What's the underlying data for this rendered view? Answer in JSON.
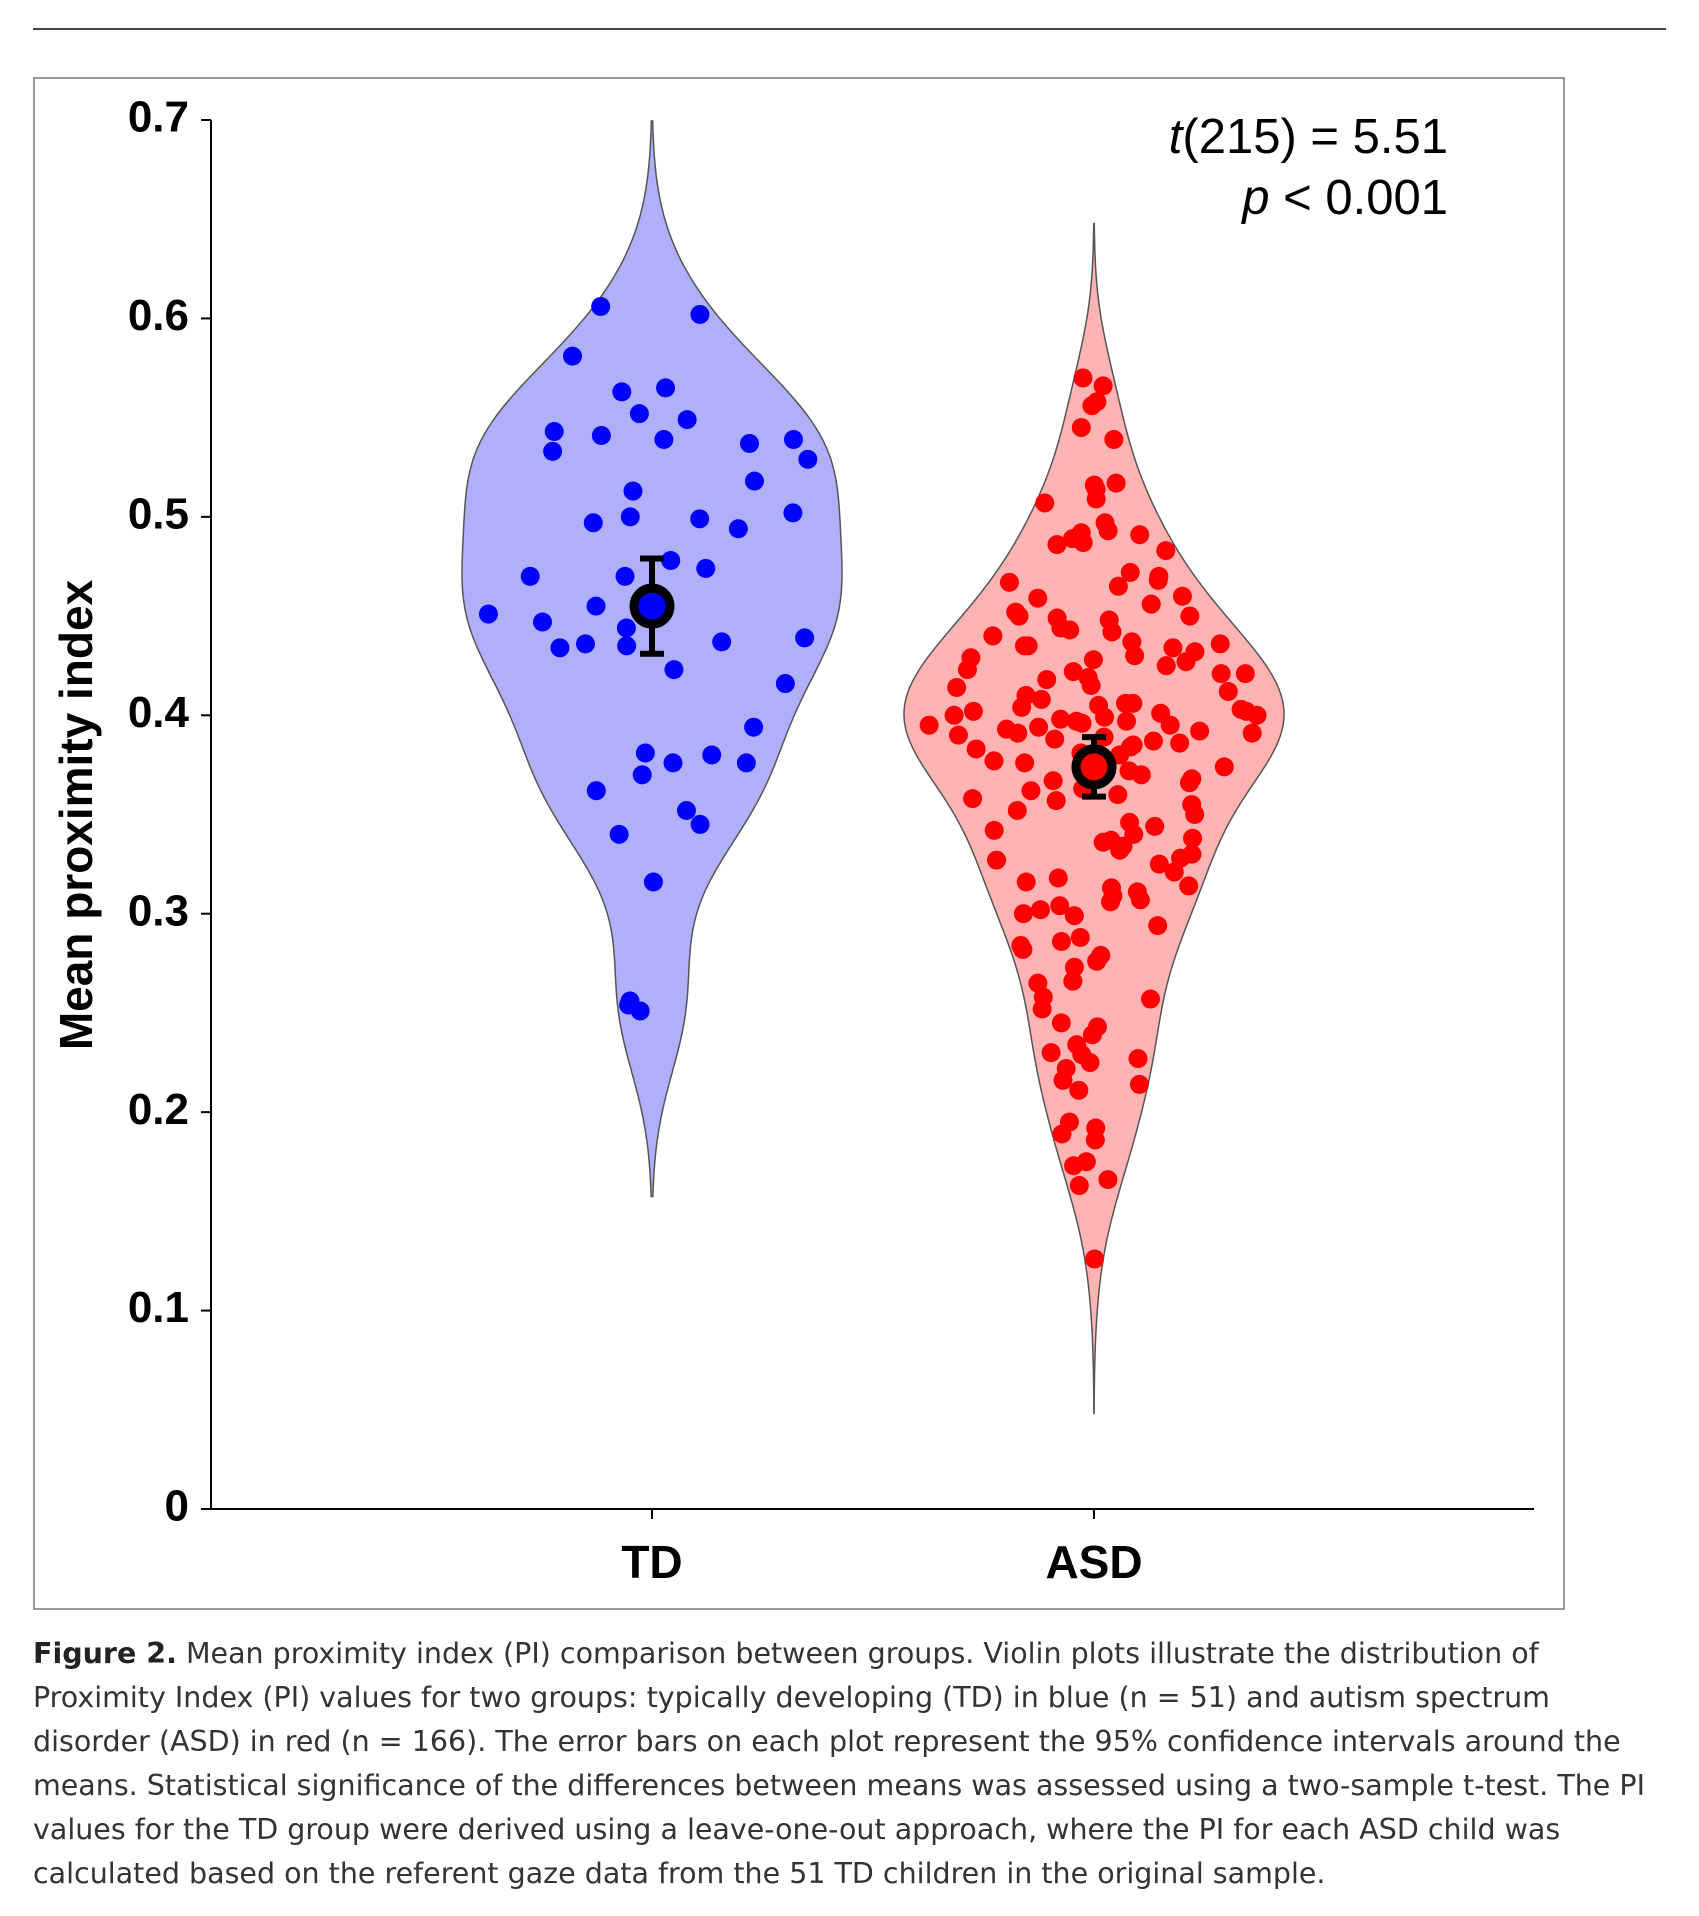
{
  "chart_data": {
    "type": "violin",
    "y_label": "Mean proximity index",
    "categories": [
      "TD",
      "ASD"
    ],
    "ylim": [
      0,
      0.7
    ],
    "yticks": [
      0,
      0.1,
      0.2,
      0.3,
      0.4,
      0.5,
      0.6,
      0.7
    ],
    "annotations": [
      {
        "italic": "t",
        "text": "(215) = 5.51"
      },
      {
        "italic": "p",
        "text": " < 0.001"
      }
    ],
    "series": [
      {
        "color": "#0000ff",
        "fill": "#b0b0fa",
        "mean": 0.455,
        "ci_low": 0.431,
        "ci_high": 0.479,
        "values": [
          0.606,
          0.602,
          0.581,
          0.565,
          0.563,
          0.552,
          0.549,
          0.543,
          0.541,
          0.539,
          0.539,
          0.537,
          0.533,
          0.529,
          0.518,
          0.513,
          0.502,
          0.5,
          0.499,
          0.497,
          0.494,
          0.478,
          0.474,
          0.47,
          0.47,
          0.455,
          0.455,
          0.451,
          0.447,
          0.444,
          0.439,
          0.437,
          0.436,
          0.435,
          0.434,
          0.423,
          0.416,
          0.394,
          0.381,
          0.38,
          0.376,
          0.376,
          0.37,
          0.362,
          0.352,
          0.345,
          0.34,
          0.316,
          0.256,
          0.254,
          0.251
        ]
      },
      {
        "color": "#ff0000",
        "fill": "#ffb3b3",
        "mean": 0.374,
        "ci_low": 0.359,
        "ci_high": 0.389,
        "values": [
          0.57,
          0.566,
          0.558,
          0.556,
          0.545,
          0.539,
          0.517,
          0.516,
          0.514,
          0.509,
          0.507,
          0.497,
          0.493,
          0.492,
          0.491,
          0.489,
          0.487,
          0.486,
          0.483,
          0.472,
          0.47,
          0.468,
          0.467,
          0.465,
          0.46,
          0.459,
          0.456,
          0.452,
          0.45,
          0.45,
          0.449,
          0.448,
          0.444,
          0.443,
          0.442,
          0.44,
          0.437,
          0.436,
          0.435,
          0.435,
          0.434,
          0.432,
          0.43,
          0.429,
          0.428,
          0.427,
          0.425,
          0.423,
          0.422,
          0.421,
          0.421,
          0.419,
          0.418,
          0.415,
          0.414,
          0.412,
          0.41,
          0.408,
          0.406,
          0.406,
          0.405,
          0.404,
          0.403,
          0.402,
          0.402,
          0.401,
          0.4,
          0.4,
          0.399,
          0.398,
          0.397,
          0.397,
          0.396,
          0.395,
          0.395,
          0.394,
          0.393,
          0.392,
          0.391,
          0.391,
          0.39,
          0.389,
          0.388,
          0.387,
          0.386,
          0.385,
          0.384,
          0.383,
          0.381,
          0.38,
          0.377,
          0.376,
          0.374,
          0.372,
          0.37,
          0.368,
          0.367,
          0.366,
          0.363,
          0.362,
          0.36,
          0.358,
          0.357,
          0.355,
          0.352,
          0.35,
          0.346,
          0.344,
          0.342,
          0.34,
          0.338,
          0.337,
          0.336,
          0.334,
          0.332,
          0.33,
          0.328,
          0.327,
          0.325,
          0.321,
          0.318,
          0.316,
          0.314,
          0.313,
          0.311,
          0.309,
          0.307,
          0.306,
          0.304,
          0.302,
          0.3,
          0.299,
          0.294,
          0.288,
          0.286,
          0.284,
          0.282,
          0.279,
          0.276,
          0.273,
          0.266,
          0.265,
          0.258,
          0.257,
          0.252,
          0.245,
          0.243,
          0.239,
          0.234,
          0.23,
          0.229,
          0.227,
          0.225,
          0.222,
          0.216,
          0.214,
          0.211,
          0.195,
          0.192,
          0.189,
          0.186,
          0.175,
          0.173,
          0.166,
          0.163,
          0.126
        ]
      }
    ]
  },
  "caption": {
    "label": "Figure 2.",
    "text": " Mean proximity index (PI) comparison between groups. Violin plots illustrate the distribution of Proximity Index (PI) values for two groups: typically developing (TD) in blue (n = 51) and autism spectrum disorder (ASD) in red (n = 166). The error bars on each plot represent the 95% confidence intervals around the means. Statistical significance of the differences between means was assessed using a two-sample t-test. The PI values for the TD group were derived using a leave-one-out approach, where the PI for each ASD child was calculated based on the referent gaze data from the 51 TD children in the original sample."
  }
}
